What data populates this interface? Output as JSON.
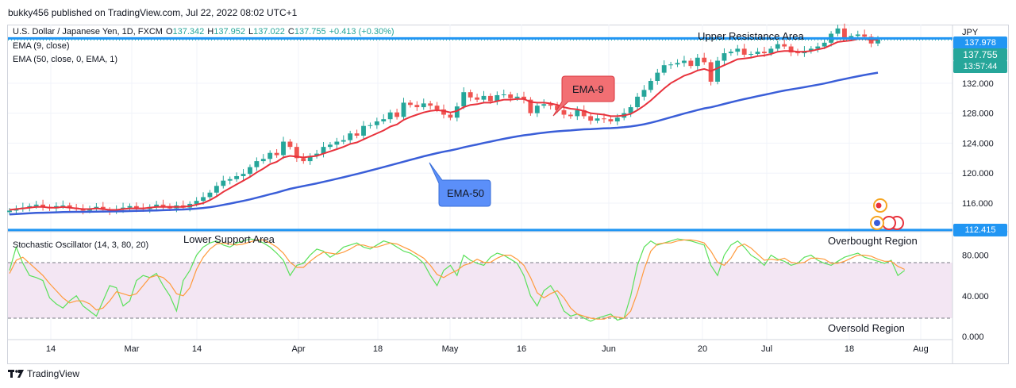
{
  "header": {
    "publisher": "bukky456 published on TradingView.com, Jul 22, 2022 08:02 UTC+1"
  },
  "legend": {
    "symbol": "U.S. Dollar / Japanese Yen, 1D, FXCM",
    "o_label": "O",
    "o_value": "137.342",
    "h_label": "H",
    "h_value": "137.952",
    "l_label": "L",
    "l_value": "137.022",
    "c_label": "C",
    "c_value": "137.755",
    "change": "+0.413 (+0.30%)",
    "ema9": "EMA (9, close)",
    "ema50": "EMA (50, close, 0, EMA, 1)",
    "stoch": "Stochastic Oscillator (14, 3, 80, 20)"
  },
  "footer": {
    "brand": "TradingView"
  },
  "colors": {
    "up": "#26a69a",
    "down": "#ef5350",
    "ema9": "#e8323c",
    "ema50": "#3a5ed8",
    "resistance": "#2196f3",
    "stoch_k": "#5be15b",
    "stoch_d": "#ff9a3c",
    "band": "#f3e6f3"
  },
  "price_tags": {
    "resistance": "137.978",
    "last": "137.755",
    "countdown": "13:57:44",
    "support": "112.415"
  },
  "chart_data": {
    "type": "candlestick",
    "currency": "JPY",
    "price_axis": {
      "ylim": [
        112.4,
        139.5
      ],
      "ticks": [
        "132.000",
        "128.000",
        "124.000",
        "120.000",
        "116.000"
      ]
    },
    "stoch_axis": {
      "ylim": [
        0,
        100
      ],
      "ticks": [
        "80.000",
        "40.000",
        "0.000"
      ]
    },
    "x_ticks": [
      "14",
      "Mar",
      "14",
      "Apr",
      "18",
      "May",
      "16",
      "Jun",
      "20",
      "Jul",
      "18",
      "Aug"
    ],
    "resistance": 137.978,
    "support": 112.415,
    "annotations": {
      "upper": "Upper Resistance Area",
      "lower": "Lower Support Area",
      "overbought": "Overbought Region",
      "oversold": "Oversold Region",
      "ema9_callout": "EMA-9",
      "ema50_callout": "EMA-50"
    },
    "closes": [
      115.0,
      115.2,
      115.4,
      115.6,
      115.8,
      115.5,
      115.3,
      115.6,
      115.7,
      115.4,
      115.2,
      115.0,
      115.3,
      115.5,
      115.1,
      114.9,
      115.2,
      115.4,
      115.6,
      115.3,
      115.2,
      115.5,
      115.8,
      115.6,
      115.3,
      115.7,
      115.4,
      115.9,
      116.3,
      116.8,
      117.4,
      118.3,
      119.0,
      119.2,
      119.6,
      119.9,
      120.8,
      121.6,
      121.9,
      122.7,
      122.4,
      124.2,
      123.5,
      122.0,
      121.6,
      122.3,
      122.6,
      123.5,
      123.8,
      124.2,
      124.4,
      125.3,
      125.0,
      126.3,
      126.4,
      126.9,
      127.2,
      128.1,
      127.5,
      129.4,
      129.1,
      128.8,
      129.3,
      129.0,
      128.5,
      127.8,
      127.4,
      128.9,
      130.8,
      130.1,
      129.8,
      130.3,
      129.6,
      130.4,
      130.5,
      130.0,
      130.2,
      129.8,
      128.0,
      129.0,
      129.2,
      129.0,
      128.4,
      127.8,
      127.6,
      128.4,
      127.6,
      127.0,
      127.3,
      127.2,
      126.9,
      127.4,
      128.0,
      128.8,
      130.2,
      131.1,
      132.3,
      133.4,
      134.4,
      134.5,
      134.7,
      135.0,
      134.3,
      135.4,
      134.8,
      132.2,
      135.0,
      136.0,
      136.2,
      136.6,
      135.8,
      135.9,
      136.2,
      136.0,
      136.6,
      137.2,
      136.9,
      136.1,
      136.0,
      136.3,
      136.6,
      136.9,
      137.4,
      138.6,
      139.3,
      138.0,
      138.3,
      138.5,
      138.2,
      137.3,
      137.8
    ],
    "ema9": [
      115.1,
      115.2,
      115.3,
      115.4,
      115.5,
      115.5,
      115.4,
      115.4,
      115.5,
      115.4,
      115.3,
      115.2,
      115.2,
      115.3,
      115.2,
      115.1,
      115.1,
      115.2,
      115.3,
      115.3,
      115.3,
      115.4,
      115.5,
      115.5,
      115.5,
      115.5,
      115.5,
      115.6,
      115.8,
      116.0,
      116.4,
      116.9,
      117.5,
      118.0,
      118.5,
      119.0,
      119.5,
      120.1,
      120.6,
      121.2,
      121.5,
      122.1,
      122.3,
      122.2,
      122.1,
      122.2,
      122.3,
      122.6,
      122.9,
      123.2,
      123.5,
      123.9,
      124.1,
      124.5,
      124.9,
      125.3,
      125.7,
      126.2,
      126.5,
      127.1,
      127.5,
      127.8,
      128.1,
      128.3,
      128.4,
      128.3,
      128.1,
      128.3,
      128.8,
      129.1,
      129.2,
      129.4,
      129.4,
      129.6,
      129.8,
      129.8,
      129.9,
      129.9,
      129.5,
      129.4,
      129.4,
      129.3,
      129.1,
      128.8,
      128.6,
      128.5,
      128.3,
      128.0,
      127.9,
      127.8,
      127.6,
      127.6,
      127.7,
      127.9,
      128.4,
      129.0,
      129.7,
      130.5,
      131.3,
      132.0,
      132.5,
      133.0,
      133.3,
      133.7,
      133.9,
      133.6,
      134.0,
      134.4,
      134.8,
      135.2,
      135.3,
      135.4,
      135.6,
      135.7,
      135.9,
      136.2,
      136.3,
      136.3,
      136.2,
      136.2,
      136.3,
      136.5,
      136.7,
      137.1,
      137.5,
      137.6,
      137.7,
      137.9,
      137.9,
      137.8,
      137.8
    ],
    "ema50": [
      114.5,
      114.55,
      114.6,
      114.65,
      114.7,
      114.72,
      114.74,
      114.77,
      114.8,
      114.82,
      114.83,
      114.84,
      114.85,
      114.87,
      114.88,
      114.89,
      114.9,
      114.92,
      114.94,
      114.96,
      114.98,
      115.0,
      115.03,
      115.06,
      115.09,
      115.12,
      115.15,
      115.2,
      115.27,
      115.35,
      115.46,
      115.6,
      115.77,
      115.94,
      116.12,
      116.3,
      116.5,
      116.72,
      116.94,
      117.18,
      117.4,
      117.66,
      117.9,
      118.1,
      118.28,
      118.46,
      118.64,
      118.84,
      119.04,
      119.25,
      119.45,
      119.67,
      119.88,
      120.11,
      120.34,
      120.57,
      120.8,
      121.05,
      121.28,
      121.53,
      121.77,
      122.0,
      122.24,
      122.46,
      122.67,
      122.86,
      123.03,
      123.22,
      123.44,
      123.64,
      123.82,
      124.02,
      124.2,
      124.39,
      124.57,
      124.74,
      124.9,
      125.05,
      125.16,
      125.28,
      125.39,
      125.49,
      125.58,
      125.64,
      125.7,
      125.78,
      125.84,
      125.88,
      125.93,
      125.97,
      126.0,
      126.06,
      126.13,
      126.22,
      126.36,
      126.52,
      126.72,
      126.95,
      127.2,
      127.45,
      127.7,
      127.95,
      128.18,
      128.42,
      128.64,
      128.79,
      129.0,
      129.23,
      129.45,
      129.68,
      129.88,
      130.07,
      130.27,
      130.45,
      130.64,
      130.84,
      131.02,
      131.17,
      131.32,
      131.47,
      131.63,
      131.79,
      131.96,
      132.16,
      132.38,
      132.56,
      132.75,
      132.93,
      133.1,
      133.25,
      133.4
    ],
    "stoch_k": [
      65,
      88,
      72,
      60,
      58,
      55,
      38,
      32,
      28,
      35,
      40,
      30,
      25,
      20,
      35,
      50,
      48,
      30,
      35,
      55,
      60,
      58,
      62,
      50,
      40,
      25,
      55,
      65,
      80,
      88,
      92,
      94,
      90,
      88,
      92,
      94,
      96,
      95,
      92,
      88,
      82,
      75,
      60,
      70,
      72,
      80,
      86,
      84,
      78,
      82,
      88,
      90,
      92,
      88,
      86,
      90,
      94,
      92,
      88,
      84,
      82,
      78,
      72,
      60,
      50,
      65,
      70,
      60,
      80,
      75,
      72,
      70,
      78,
      82,
      80,
      76,
      72,
      60,
      40,
      30,
      45,
      50,
      40,
      25,
      20,
      22,
      18,
      15,
      18,
      20,
      22,
      16,
      18,
      40,
      70,
      88,
      94,
      90,
      92,
      94,
      96,
      95,
      94,
      92,
      90,
      70,
      60,
      80,
      90,
      94,
      88,
      80,
      76,
      70,
      80,
      76,
      74,
      70,
      72,
      78,
      80,
      75,
      72,
      70,
      74,
      78,
      80,
      82,
      78,
      76,
      74,
      72,
      75,
      60,
      65
    ],
    "stoch_d": [
      62,
      75,
      78,
      72,
      66,
      60,
      52,
      45,
      38,
      33,
      35,
      35,
      32,
      26,
      28,
      35,
      44,
      42,
      40,
      42,
      50,
      58,
      60,
      58,
      52,
      42,
      40,
      48,
      66,
      78,
      86,
      91,
      92,
      91,
      90,
      91,
      93,
      95,
      95,
      92,
      88,
      82,
      73,
      68,
      68,
      74,
      79,
      83,
      82,
      81,
      83,
      86,
      90,
      90,
      88,
      88,
      90,
      92,
      91,
      88,
      85,
      81,
      77,
      70,
      61,
      58,
      62,
      65,
      70,
      72,
      76,
      73,
      73,
      77,
      80,
      80,
      76,
      70,
      58,
      43,
      38,
      42,
      45,
      38,
      28,
      22,
      20,
      18,
      17,
      17,
      20,
      19,
      18,
      25,
      43,
      66,
      84,
      91,
      92,
      92,
      94,
      95,
      95,
      94,
      92,
      84,
      73,
      70,
      77,
      88,
      91,
      87,
      81,
      75,
      76,
      75,
      77,
      73,
      72,
      73,
      77,
      77,
      76,
      72,
      72,
      74,
      77,
      80,
      80,
      79,
      76,
      74,
      74,
      69,
      66
    ]
  }
}
